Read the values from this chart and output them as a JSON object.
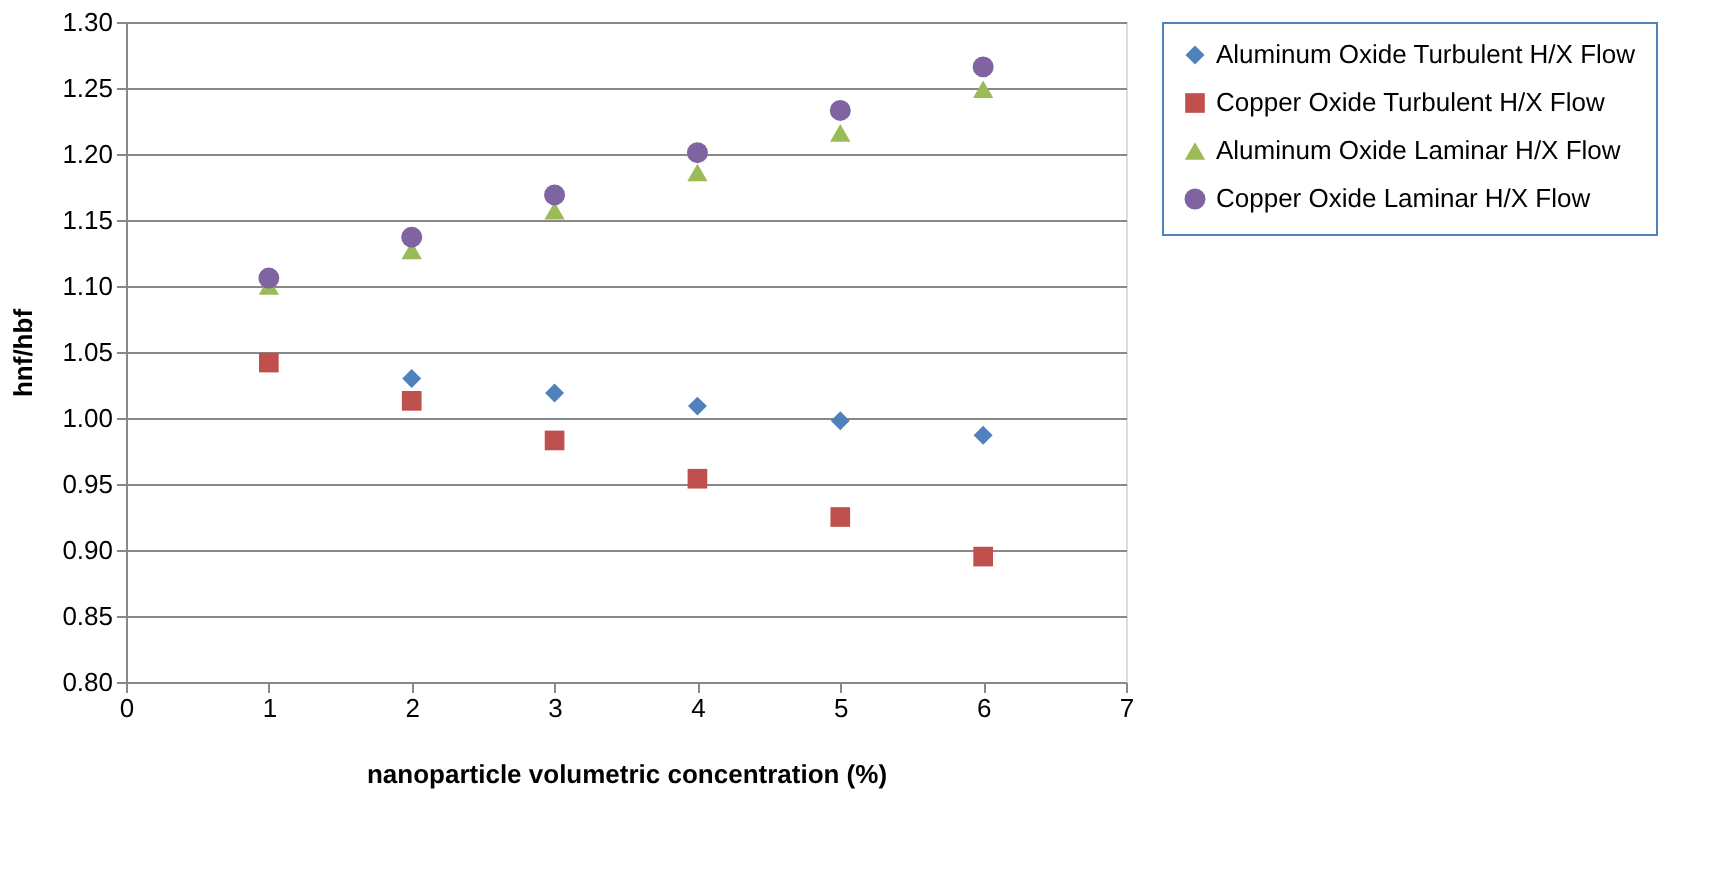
{
  "chart_data": {
    "type": "scatter",
    "xlabel": "nanoparticle volumetric concentration (%)",
    "ylabel": "hnf/hbf",
    "x": [
      1,
      2,
      3,
      4,
      5,
      6
    ],
    "series": [
      {
        "name": "Aluminum Oxide Turbulent H/X Flow",
        "color": "#4f81bd",
        "marker": "diamond",
        "values": [
          null,
          1.03,
          1.019,
          1.009,
          0.998,
          0.987
        ]
      },
      {
        "name": "Copper Oxide Turbulent H/X Flow",
        "color": "#c0504d",
        "marker": "square",
        "values": [
          1.042,
          1.013,
          0.983,
          0.954,
          0.925,
          0.895
        ]
      },
      {
        "name": "Aluminum Oxide Laminar H/X Flow",
        "color": "#9bbb59",
        "marker": "triangle",
        "values": [
          1.1,
          1.127,
          1.157,
          1.186,
          1.216,
          1.249
        ]
      },
      {
        "name": "Copper Oxide Laminar H/X Flow",
        "color": "#8064a2",
        "marker": "circle",
        "values": [
          1.106,
          1.137,
          1.169,
          1.201,
          1.233,
          1.266
        ]
      }
    ],
    "xlim": [
      0,
      7
    ],
    "xticks": [
      0,
      1,
      2,
      3,
      4,
      5,
      6,
      7
    ],
    "ylim": [
      0.8,
      1.3
    ],
    "yticks": [
      {
        "value": 0.8,
        "label": "0.80"
      },
      {
        "value": 0.85,
        "label": "0.85"
      },
      {
        "value": 0.9,
        "label": "0.90"
      },
      {
        "value": 0.95,
        "label": "0.95"
      },
      {
        "value": 1.0,
        "label": "1.00"
      },
      {
        "value": 1.05,
        "label": "1.05"
      },
      {
        "value": 1.1,
        "label": "1.10"
      },
      {
        "value": 1.15,
        "label": "1.15"
      },
      {
        "value": 1.2,
        "label": "1.20"
      },
      {
        "value": 1.25,
        "label": "1.25"
      },
      {
        "value": 1.3,
        "label": "1.30"
      }
    ],
    "grid": "y",
    "legend": "right"
  }
}
